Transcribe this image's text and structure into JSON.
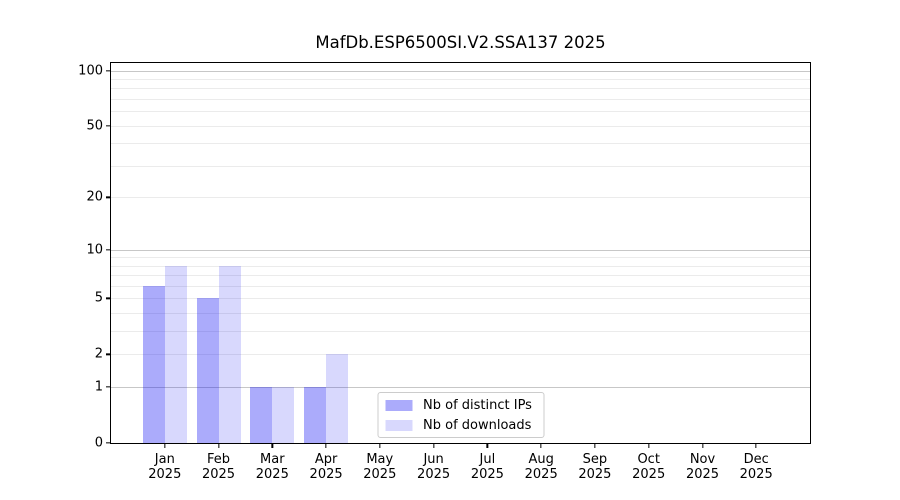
{
  "chart_data": {
    "type": "bar",
    "title": "MafDb.ESP6500SI.V2.SSA137 2025",
    "categories": [
      {
        "month": "Jan",
        "year": "2025"
      },
      {
        "month": "Feb",
        "year": "2025"
      },
      {
        "month": "Mar",
        "year": "2025"
      },
      {
        "month": "Apr",
        "year": "2025"
      },
      {
        "month": "May",
        "year": "2025"
      },
      {
        "month": "Jun",
        "year": "2025"
      },
      {
        "month": "Jul",
        "year": "2025"
      },
      {
        "month": "Aug",
        "year": "2025"
      },
      {
        "month": "Sep",
        "year": "2025"
      },
      {
        "month": "Oct",
        "year": "2025"
      },
      {
        "month": "Nov",
        "year": "2025"
      },
      {
        "month": "Dec",
        "year": "2025"
      }
    ],
    "series": [
      {
        "name": "Nb of distinct IPs",
        "color": "rgba(13,13,242,0.345)",
        "values": [
          6,
          5,
          1,
          1,
          0,
          0,
          0,
          0,
          0,
          0,
          0,
          0
        ]
      },
      {
        "name": "Nb of downloads",
        "color": "rgba(13,13,242,0.16)",
        "values": [
          8,
          8,
          1,
          2,
          0,
          0,
          0,
          0,
          0,
          0,
          0,
          0
        ]
      }
    ],
    "yscale": "log1p",
    "ylim": [
      0,
      110
    ],
    "yticks": [
      0,
      1,
      2,
      5,
      10,
      20,
      50,
      100
    ],
    "major_gridlines": [
      1,
      10,
      100
    ],
    "minor_gridlines": [
      2,
      3,
      4,
      5,
      6,
      7,
      8,
      9,
      20,
      30,
      40,
      50,
      60,
      70,
      80,
      90
    ],
    "grid": true,
    "legend_position": "lower center"
  }
}
